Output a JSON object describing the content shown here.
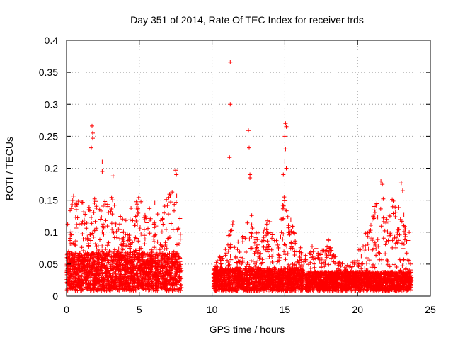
{
  "chart_data": {
    "type": "scatter",
    "title": "Day 351 of 2014, Rate Of TEC Index for receiver trds",
    "xlabel": "GPS time / hours",
    "ylabel": "ROTI / TECUs",
    "xlim": [
      0,
      25
    ],
    "ylim": [
      0,
      0.4
    ],
    "x_ticks": [
      0,
      5,
      10,
      15,
      20,
      25
    ],
    "x_tick_labels": [
      "0",
      "5",
      "10",
      "15",
      "20",
      "25"
    ],
    "y_ticks": [
      0,
      0.05,
      0.1,
      0.15,
      0.2,
      0.25,
      0.3,
      0.35,
      0.4
    ],
    "y_tick_labels": [
      "0",
      "0.05",
      "0.1",
      "0.15",
      "0.2",
      "0.25",
      "0.3",
      "0.35",
      "0.4"
    ],
    "grid": true,
    "marker": "plus",
    "marker_color": "#ff0000",
    "series": [
      {
        "name": "ROTI",
        "segments": [
          {
            "x_start": 0.0,
            "x_end": 7.9,
            "base_max": 0.06,
            "envelope": [
              [
                0,
                0.12
              ],
              [
                0.5,
                0.15
              ],
              [
                1,
                0.14
              ],
              [
                1.5,
                0.13
              ],
              [
                2,
                0.15
              ],
              [
                2.5,
                0.14
              ],
              [
                3,
                0.15
              ],
              [
                3.5,
                0.13
              ],
              [
                4,
                0.12
              ],
              [
                4.5,
                0.13
              ],
              [
                5,
                0.15
              ],
              [
                5.5,
                0.12
              ],
              [
                6,
                0.14
              ],
              [
                6.5,
                0.13
              ],
              [
                7,
                0.15
              ],
              [
                7.5,
                0.18
              ],
              [
                7.9,
                0.12
              ]
            ]
          },
          {
            "x_start": 10.1,
            "x_end": 16.3,
            "base_max": 0.035,
            "envelope": [
              [
                10.1,
                0.04
              ],
              [
                10.5,
                0.05
              ],
              [
                11,
                0.07
              ],
              [
                11.3,
                0.14
              ],
              [
                11.6,
                0.08
              ],
              [
                12,
                0.07
              ],
              [
                12.5,
                0.15
              ],
              [
                13,
                0.09
              ],
              [
                13.5,
                0.1
              ],
              [
                14,
                0.12
              ],
              [
                14.5,
                0.07
              ],
              [
                15,
                0.16
              ],
              [
                15.4,
                0.12
              ],
              [
                15.8,
                0.09
              ],
              [
                16.3,
                0.05
              ]
            ]
          },
          {
            "x_start": 16.4,
            "x_end": 20.0,
            "base_max": 0.03,
            "envelope": [
              [
                16.4,
                0.06
              ],
              [
                17,
                0.07
              ],
              [
                17.5,
                0.06
              ],
              [
                18,
                0.08
              ],
              [
                18.5,
                0.05
              ],
              [
                19,
                0.04
              ],
              [
                19.5,
                0.04
              ],
              [
                20,
                0.05
              ]
            ]
          },
          {
            "x_start": 20.0,
            "x_end": 23.7,
            "base_max": 0.03,
            "envelope": [
              [
                20,
                0.06
              ],
              [
                20.5,
                0.09
              ],
              [
                21,
                0.12
              ],
              [
                21.5,
                0.16
              ],
              [
                22,
                0.13
              ],
              [
                22.5,
                0.15
              ],
              [
                23,
                0.13
              ],
              [
                23.5,
                0.1
              ],
              [
                23.7,
                0.08
              ]
            ]
          }
        ],
        "notable_points": [
          {
            "x": 1.75,
            "y": 0.266
          },
          {
            "x": 1.8,
            "y": 0.255
          },
          {
            "x": 1.8,
            "y": 0.247
          },
          {
            "x": 1.7,
            "y": 0.232
          },
          {
            "x": 2.45,
            "y": 0.21
          },
          {
            "x": 2.45,
            "y": 0.195
          },
          {
            "x": 3.2,
            "y": 0.188
          },
          {
            "x": 7.5,
            "y": 0.197
          },
          {
            "x": 7.55,
            "y": 0.19
          },
          {
            "x": 11.25,
            "y": 0.366
          },
          {
            "x": 11.25,
            "y": 0.3
          },
          {
            "x": 11.2,
            "y": 0.217
          },
          {
            "x": 12.5,
            "y": 0.259
          },
          {
            "x": 12.55,
            "y": 0.232
          },
          {
            "x": 12.6,
            "y": 0.19
          },
          {
            "x": 12.6,
            "y": 0.185
          },
          {
            "x": 15.05,
            "y": 0.27
          },
          {
            "x": 15.1,
            "y": 0.265
          },
          {
            "x": 15.0,
            "y": 0.25
          },
          {
            "x": 15.05,
            "y": 0.23
          },
          {
            "x": 15.0,
            "y": 0.21
          },
          {
            "x": 15.1,
            "y": 0.2
          },
          {
            "x": 14.9,
            "y": 0.19
          },
          {
            "x": 14.95,
            "y": 0.155
          },
          {
            "x": 21.6,
            "y": 0.18
          },
          {
            "x": 21.7,
            "y": 0.175
          },
          {
            "x": 23.0,
            "y": 0.177
          },
          {
            "x": 23.1,
            "y": 0.165
          }
        ]
      }
    ]
  }
}
